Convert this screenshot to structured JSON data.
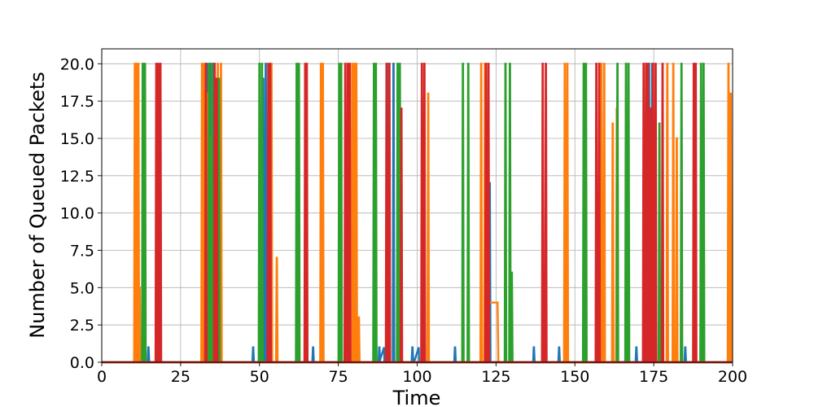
{
  "chart_data": {
    "type": "line",
    "xlabel": "Time",
    "ylabel": "Number of Queued Packets",
    "xlim": [
      0,
      200
    ],
    "ylim": [
      0,
      21
    ],
    "xticks": [
      0,
      25,
      50,
      75,
      100,
      125,
      150,
      175,
      200
    ],
    "yticks": [
      0.0,
      2.5,
      5.0,
      7.5,
      10.0,
      12.5,
      15.0,
      17.5,
      20.0
    ],
    "xtick_labels": [
      "0",
      "25",
      "50",
      "75",
      "100",
      "125",
      "150",
      "175",
      "200"
    ],
    "ytick_labels": [
      "0.0",
      "2.5",
      "5.0",
      "7.5",
      "10.0",
      "12.5",
      "15.0",
      "17.5",
      "20.0"
    ],
    "grid": true,
    "series": [
      {
        "color": "#1f77b4",
        "peaks": [
          [
            10.5,
            1
          ],
          [
            13.0,
            1
          ],
          [
            14.8,
            1
          ],
          [
            33.5,
            20
          ],
          [
            34.5,
            20
          ],
          [
            35.3,
            20
          ],
          [
            48.0,
            1
          ],
          [
            51.2,
            19
          ],
          [
            52.0,
            20
          ],
          [
            67.0,
            1
          ],
          [
            78.5,
            1
          ],
          [
            88.0,
            1
          ],
          [
            91.0,
            20
          ],
          [
            92.5,
            20
          ],
          [
            98.5,
            1
          ],
          [
            112.0,
            1
          ],
          [
            123.0,
            12
          ],
          [
            137.0,
            1
          ],
          [
            145.0,
            1
          ],
          [
            169.5,
            1
          ],
          [
            173.5,
            20
          ],
          [
            174.5,
            20
          ],
          [
            185.0,
            1
          ]
        ],
        "ramps": [
          [
            88.0,
            89.5,
            1
          ],
          [
            99.0,
            100.5,
            1
          ]
        ]
      },
      {
        "color": "#ff7f0e",
        "peaks": [
          [
            10.5,
            20
          ],
          [
            11.0,
            20
          ],
          [
            11.6,
            20
          ],
          [
            12.0,
            5
          ],
          [
            31.8,
            20
          ],
          [
            32.3,
            20
          ],
          [
            32.8,
            20
          ],
          [
            33.4,
            18
          ],
          [
            34.3,
            15
          ],
          [
            36.8,
            20
          ],
          [
            37.8,
            20
          ],
          [
            53.8,
            20
          ],
          [
            55.5,
            7
          ],
          [
            69.5,
            20
          ],
          [
            70.1,
            20
          ],
          [
            79.4,
            20
          ],
          [
            80.0,
            20
          ],
          [
            80.7,
            20
          ],
          [
            81.5,
            3
          ],
          [
            103.5,
            18
          ],
          [
            120.3,
            20
          ],
          [
            121.5,
            20
          ],
          [
            146.8,
            20
          ],
          [
            147.6,
            20
          ],
          [
            158.4,
            20
          ],
          [
            159.3,
            20
          ],
          [
            162.0,
            16
          ],
          [
            163.3,
            17
          ],
          [
            179.3,
            20
          ],
          [
            181.2,
            20
          ],
          [
            182.3,
            15
          ],
          [
            198.7,
            20
          ],
          [
            199.4,
            18
          ]
        ],
        "plateaus": [
          [
            122.5,
            125.5,
            4
          ]
        ]
      },
      {
        "color": "#2ca02c",
        "peaks": [
          [
            13.0,
            20
          ],
          [
            13.7,
            20
          ],
          [
            34.0,
            20
          ],
          [
            34.9,
            20
          ],
          [
            37.2,
            19
          ],
          [
            50.0,
            20
          ],
          [
            50.8,
            20
          ],
          [
            61.8,
            20
          ],
          [
            62.5,
            20
          ],
          [
            75.3,
            20
          ],
          [
            75.9,
            20
          ],
          [
            86.3,
            20
          ],
          [
            86.9,
            20
          ],
          [
            93.8,
            20
          ],
          [
            94.5,
            20
          ],
          [
            114.5,
            20
          ],
          [
            116.2,
            20
          ],
          [
            128.0,
            20
          ],
          [
            129.4,
            20
          ],
          [
            130.0,
            6
          ],
          [
            152.8,
            20
          ],
          [
            153.5,
            20
          ],
          [
            163.5,
            20
          ],
          [
            166.2,
            20
          ],
          [
            167.0,
            20
          ],
          [
            176.8,
            16
          ],
          [
            183.8,
            20
          ],
          [
            190.0,
            20
          ],
          [
            190.8,
            20
          ]
        ]
      },
      {
        "color": "#d62728",
        "peaks": [
          [
            17.3,
            20
          ],
          [
            18.0,
            20
          ],
          [
            18.6,
            20
          ],
          [
            33.0,
            20
          ],
          [
            35.8,
            20
          ],
          [
            36.5,
            19
          ],
          [
            52.8,
            20
          ],
          [
            53.4,
            20
          ],
          [
            64.5,
            20
          ],
          [
            65.0,
            20
          ],
          [
            77.2,
            20
          ],
          [
            78.0,
            20
          ],
          [
            78.6,
            20
          ],
          [
            90.3,
            20
          ],
          [
            91.2,
            20
          ],
          [
            95.0,
            17
          ],
          [
            101.5,
            20
          ],
          [
            102.3,
            20
          ],
          [
            121.8,
            20
          ],
          [
            122.6,
            20
          ],
          [
            139.8,
            20
          ],
          [
            140.8,
            20
          ],
          [
            156.8,
            20
          ],
          [
            157.7,
            20
          ],
          [
            171.8,
            20
          ],
          [
            172.6,
            20
          ],
          [
            173.2,
            20
          ],
          [
            174.0,
            17
          ],
          [
            174.8,
            20
          ],
          [
            175.6,
            20
          ],
          [
            177.8,
            20
          ],
          [
            187.7,
            20
          ],
          [
            188.3,
            20
          ]
        ]
      }
    ]
  }
}
